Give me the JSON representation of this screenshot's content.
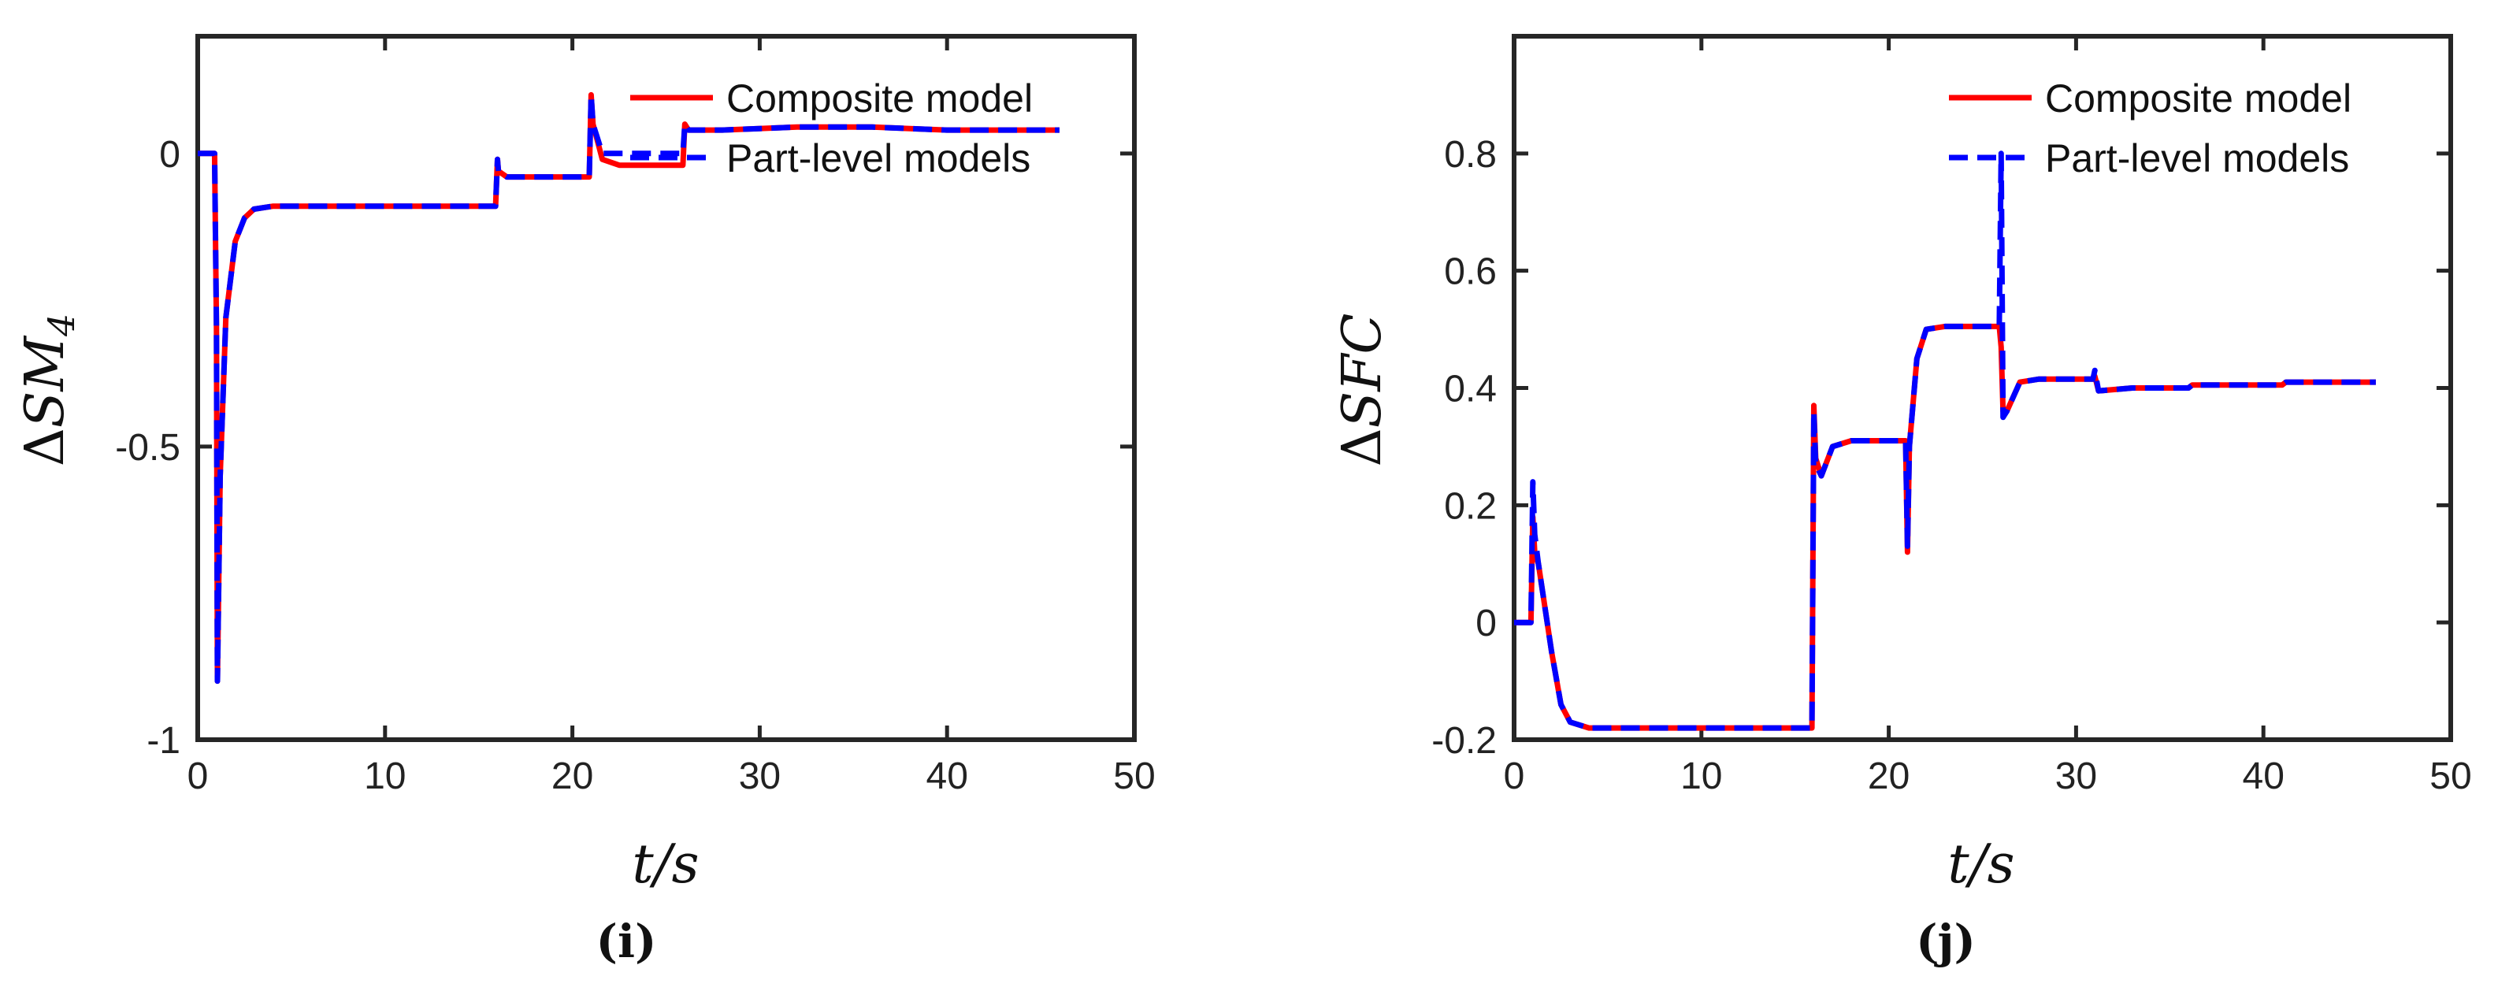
{
  "colors": {
    "composite": "#ff0000",
    "part_level": "#0000ff",
    "axis": "#262626"
  },
  "chart_data": [
    {
      "type": "line",
      "panel_label": "(i)",
      "xlabel": "t/s",
      "ylabel": "ΔSM4",
      "xlim": [
        0,
        50
      ],
      "ylim": [
        -1,
        0.2
      ],
      "xticks": [
        0,
        10,
        20,
        30,
        40,
        50
      ],
      "yticks": [
        0,
        -0.5,
        -1
      ],
      "xtick_labels": [
        "0",
        "10",
        "20",
        "30",
        "40",
        "50"
      ],
      "ytick_labels": [
        "0",
        "-0.5",
        "-1"
      ],
      "grid": false,
      "legend": "top-right",
      "series": [
        {
          "name": "Composite model",
          "style": "solid",
          "x": [
            0,
            0.9,
            1.0,
            1.05,
            1.2,
            1.5,
            2.0,
            2.5,
            3.0,
            4.0,
            6.0,
            10.0,
            15.9,
            16.0,
            16.05,
            16.5,
            17.5,
            20.9,
            21.0,
            21.1,
            21.6,
            22.5,
            25.9,
            26.0,
            26.2,
            28.0,
            32.0,
            36.0,
            40.0,
            46.0
          ],
          "values": [
            0,
            0,
            -0.3,
            -0.9,
            -0.55,
            -0.28,
            -0.15,
            -0.11,
            -0.095,
            -0.09,
            -0.09,
            -0.09,
            -0.09,
            -0.01,
            -0.03,
            -0.04,
            -0.04,
            -0.04,
            0.1,
            0.05,
            -0.01,
            -0.02,
            -0.02,
            0.05,
            0.04,
            0.04,
            0.045,
            0.045,
            0.04,
            0.04
          ]
        },
        {
          "name": "Part-level models",
          "style": "dashed",
          "x": [
            0,
            0.9,
            1.0,
            1.05,
            1.2,
            1.5,
            2.0,
            2.5,
            3.0,
            4.0,
            6.0,
            10.0,
            15.9,
            16.0,
            16.05,
            16.5,
            17.5,
            20.9,
            21.0,
            21.1,
            21.6,
            22.5,
            25.9,
            26.0,
            26.2,
            28.0,
            32.0,
            36.0,
            40.0,
            46.0
          ],
          "values": [
            0,
            0,
            -0.3,
            -0.9,
            -0.55,
            -0.28,
            -0.15,
            -0.11,
            -0.095,
            -0.09,
            -0.09,
            -0.09,
            -0.09,
            -0.01,
            -0.03,
            -0.04,
            -0.04,
            -0.04,
            0.1,
            0.05,
            0.0,
            0.0,
            0.0,
            0.05,
            0.04,
            0.04,
            0.045,
            0.045,
            0.04,
            0.04
          ]
        }
      ]
    },
    {
      "type": "line",
      "panel_label": "(j)",
      "xlabel": "t/s",
      "ylabel": "ΔSFC",
      "xlim": [
        0,
        50
      ],
      "ylim": [
        -0.2,
        1.0
      ],
      "xticks": [
        0,
        10,
        20,
        30,
        40,
        50
      ],
      "yticks": [
        -0.2,
        0,
        0.2,
        0.4,
        0.6,
        0.8
      ],
      "xtick_labels": [
        "0",
        "10",
        "20",
        "30",
        "40",
        "50"
      ],
      "ytick_labels": [
        "-0.2",
        "0",
        "0.2",
        "0.4",
        "0.6",
        "0.8"
      ],
      "grid": false,
      "legend": "top-right",
      "series": [
        {
          "name": "Composite model",
          "style": "solid",
          "x": [
            0,
            0.9,
            1.0,
            1.1,
            1.3,
            2.0,
            2.5,
            3.0,
            4.0,
            8.0,
            15.9,
            16.0,
            16.1,
            16.4,
            17.0,
            18.0,
            20.9,
            21.0,
            21.1,
            21.5,
            22.0,
            23.0,
            25.9,
            26.0,
            26.1,
            26.3,
            27.0,
            28.0,
            30.9,
            31.0,
            31.2,
            33.0,
            36.0,
            36.2,
            41.0,
            41.2,
            46.0
          ],
          "values": [
            0,
            0,
            0.18,
            0.12,
            0.1,
            -0.05,
            -0.14,
            -0.17,
            -0.18,
            -0.18,
            -0.18,
            0.37,
            0.28,
            0.25,
            0.3,
            0.31,
            0.31,
            0.12,
            0.3,
            0.45,
            0.5,
            0.505,
            0.505,
            0.47,
            0.36,
            0.36,
            0.41,
            0.415,
            0.415,
            0.42,
            0.395,
            0.4,
            0.4,
            0.405,
            0.405,
            0.41,
            0.41
          ]
        },
        {
          "name": "Part-level models",
          "style": "dashed",
          "x": [
            0,
            0.9,
            1.0,
            1.1,
            1.3,
            2.0,
            2.5,
            3.0,
            4.0,
            8.0,
            15.9,
            16.0,
            16.1,
            16.4,
            17.0,
            18.0,
            20.9,
            21.0,
            21.1,
            21.5,
            22.0,
            23.0,
            25.9,
            26.0,
            26.1,
            26.3,
            27.0,
            28.0,
            30.9,
            31.0,
            31.2,
            33.0,
            36.0,
            36.2,
            41.0,
            41.2,
            46.0
          ],
          "values": [
            0,
            0,
            0.24,
            0.15,
            0.1,
            -0.05,
            -0.14,
            -0.17,
            -0.18,
            -0.18,
            -0.18,
            0.36,
            0.27,
            0.25,
            0.3,
            0.31,
            0.31,
            0.13,
            0.3,
            0.45,
            0.5,
            0.505,
            0.505,
            0.8,
            0.35,
            0.36,
            0.41,
            0.415,
            0.415,
            0.43,
            0.395,
            0.4,
            0.4,
            0.405,
            0.405,
            0.41,
            0.41
          ]
        }
      ]
    }
  ]
}
